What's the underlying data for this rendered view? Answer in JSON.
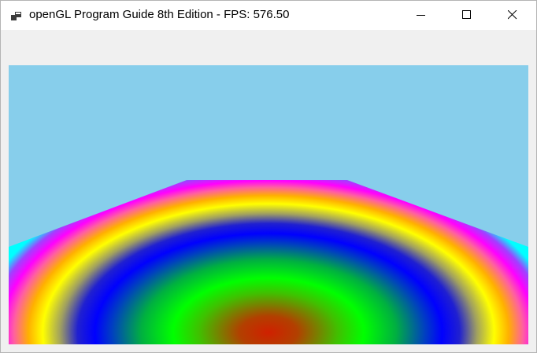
{
  "window": {
    "title": "openGL Program Guide 8th Edition - FPS: 576.50",
    "icon": "app-window-icon"
  },
  "caption_buttons": {
    "minimize": "minimize-icon",
    "maximize": "maximize-icon",
    "close": "close-icon"
  },
  "viewport": {
    "sky_color": "#87ceeb",
    "gradient_colors": [
      "#d02000",
      "#00ff00",
      "#0000ff",
      "#ffff00",
      "#ff00ff",
      "#00ffff"
    ]
  }
}
